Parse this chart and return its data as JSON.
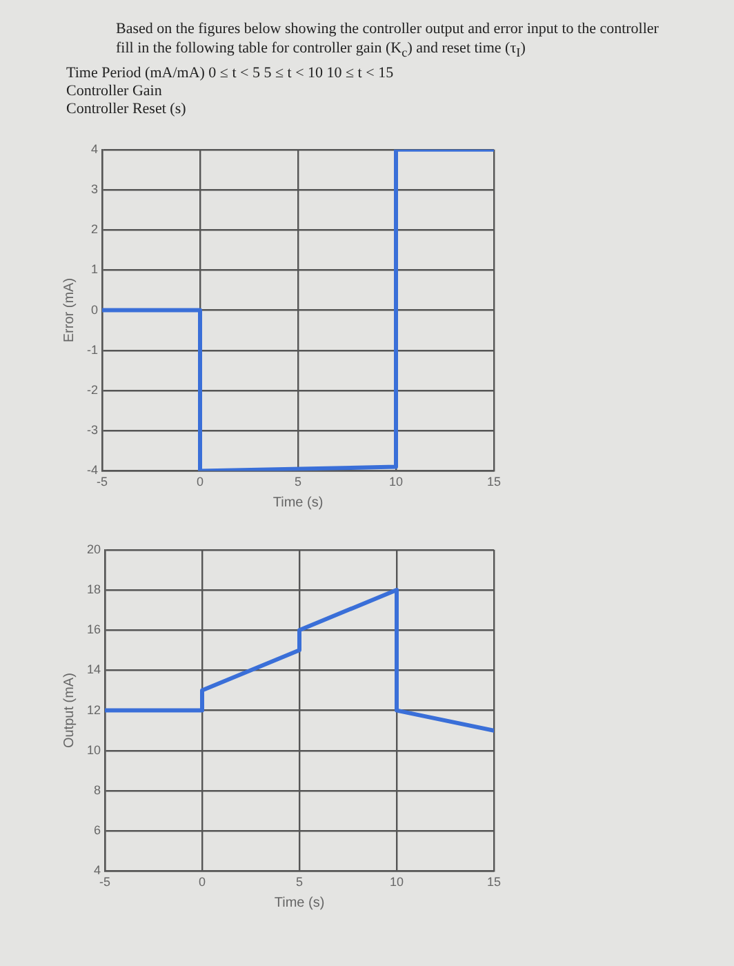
{
  "chart_data": [
    {
      "type": "line",
      "title": "Based on the figures below showing the controller output and error input to the controller fill in the following table for controller gain (K$_{c}$) and reset time (τ$_{I}$)",
      "annotations": [
        "Time Period (mA/mA) 0 ≤ t < 5 5 ≤ t < 10 10 ≤ t < 15",
        "Controller Gain",
        "Controller Reset (s)"
      ],
      "xlabel": "Time (s)",
      "ylabel": "Error (mA)",
      "series": [
        {
          "color": "#3a6fd8",
          "x": [
            -5,
            0,
            0,
            10,
            10,
            15
          ],
          "values": [
            0,
            0,
            -4,
            -3.9,
            4,
            4
          ]
        }
      ],
      "xlim": [
        -5,
        15
      ],
      "xticks": [
        -5,
        0,
        5,
        10,
        15
      ],
      "ylim": [
        -4,
        4
      ],
      "yticks": [
        -4,
        -3,
        -2,
        -1,
        0,
        1,
        2,
        3,
        4
      ],
      "grid": true,
      "legend": false,
      "marker": "none"
    },
    {
      "type": "line",
      "xlabel": "Time (s)",
      "ylabel": "Output (mA)",
      "series": [
        {
          "color": "#3a6fd8",
          "x": [
            -5,
            0,
            0,
            5,
            5,
            10,
            10,
            15
          ],
          "values": [
            12,
            12,
            13,
            15,
            16,
            18,
            12,
            11
          ]
        }
      ],
      "xlim": [
        -5,
        15
      ],
      "xticks": [
        -5,
        0,
        5,
        10,
        15
      ],
      "ylim": [
        4,
        20
      ],
      "yticks": [
        4,
        6,
        8,
        10,
        12,
        14,
        16,
        18,
        20
      ],
      "grid": true,
      "legend": false,
      "marker": "none"
    }
  ]
}
